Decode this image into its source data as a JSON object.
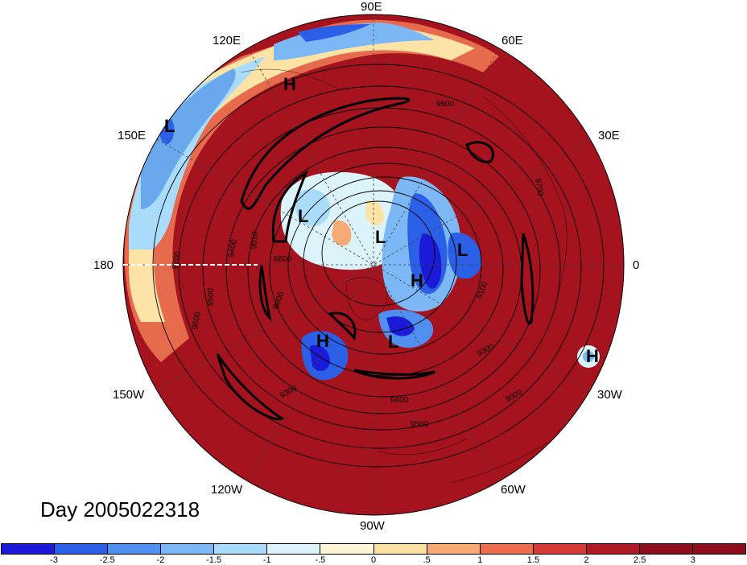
{
  "title": "Day 2005022318",
  "longitude_labels": [
    "90E",
    "60E",
    "30E",
    "0",
    "30W",
    "60W",
    "90W",
    "120W",
    "150W",
    "180",
    "150E",
    "120E"
  ],
  "pressure_labels": [
    "H",
    "L"
  ],
  "contour_labels": [
    "9600",
    "9700",
    "9500",
    "9400",
    "9300",
    "8800",
    "8600",
    "9100",
    "9010",
    "9600",
    "9700",
    "9300",
    "9400",
    "9500",
    "9000"
  ],
  "colorbar": {
    "ticks": [
      "-3",
      "-2.5",
      "-2",
      "-1.5",
      "-1",
      "-.5",
      "0",
      ".5",
      "1",
      "1.5",
      "2",
      "2.5",
      "3"
    ],
    "colors": [
      "#1a1ad8",
      "#2b5fe6",
      "#4f8ff0",
      "#7cb8f6",
      "#a9dcfa",
      "#ddf3fb",
      "#fdf6d6",
      "#fbe0a4",
      "#f6aa76",
      "#ec6e4f",
      "#d63a36",
      "#b01a24",
      "#8e0d1c"
    ]
  }
}
